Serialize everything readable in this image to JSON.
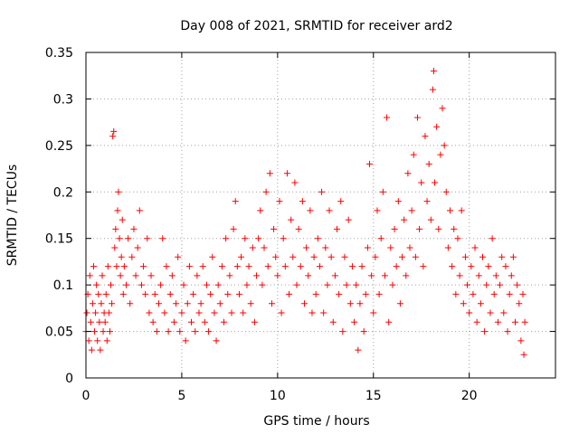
{
  "chart_data": {
    "type": "scatter",
    "title": "Day 008 of 2021, SRMTID for receiver ard2",
    "xlabel": "GPS time / hours",
    "ylabel": "SRMTID / TECUs",
    "xlim": [
      0,
      24.5
    ],
    "ylim": [
      0,
      0.35
    ],
    "grid": true,
    "marker": "+",
    "color": "#ff0000",
    "x_ticks": [
      0,
      5,
      10,
      15,
      20
    ],
    "x_tick_labels": [
      "0",
      "5",
      "10",
      "15",
      "20"
    ],
    "y_ticks": [
      0,
      0.05,
      0.1,
      0.15,
      0.2,
      0.25,
      0.3,
      0.35
    ],
    "y_tick_labels": [
      "0",
      "0.05",
      "0.1",
      "0.15",
      "0.2",
      "0.25",
      "0.3",
      "0.35"
    ],
    "series": [
      {
        "name": "SRMTID",
        "points": [
          [
            0.0,
            0.05
          ],
          [
            0.05,
            0.07
          ],
          [
            0.1,
            0.09
          ],
          [
            0.15,
            0.04
          ],
          [
            0.2,
            0.11
          ],
          [
            0.25,
            0.06
          ],
          [
            0.3,
            0.03
          ],
          [
            0.35,
            0.08
          ],
          [
            0.4,
            0.12
          ],
          [
            0.45,
            0.05
          ],
          [
            0.5,
            0.07
          ],
          [
            0.55,
            0.1
          ],
          [
            0.6,
            0.04
          ],
          [
            0.65,
            0.09
          ],
          [
            0.7,
            0.06
          ],
          [
            0.75,
            0.03
          ],
          [
            0.8,
            0.08
          ],
          [
            0.85,
            0.11
          ],
          [
            0.9,
            0.05
          ],
          [
            0.95,
            0.07
          ],
          [
            1.0,
            0.06
          ],
          [
            1.05,
            0.09
          ],
          [
            1.1,
            0.04
          ],
          [
            1.15,
            0.12
          ],
          [
            1.2,
            0.07
          ],
          [
            1.25,
            0.05
          ],
          [
            1.3,
            0.1
          ],
          [
            1.35,
            0.08
          ],
          [
            1.4,
            0.26
          ],
          [
            1.45,
            0.265
          ],
          [
            1.5,
            0.14
          ],
          [
            1.55,
            0.16
          ],
          [
            1.6,
            0.12
          ],
          [
            1.65,
            0.18
          ],
          [
            1.7,
            0.2
          ],
          [
            1.75,
            0.15
          ],
          [
            1.8,
            0.11
          ],
          [
            1.85,
            0.13
          ],
          [
            1.9,
            0.17
          ],
          [
            1.95,
            0.09
          ],
          [
            2.0,
            0.12
          ],
          [
            2.1,
            0.1
          ],
          [
            2.2,
            0.15
          ],
          [
            2.3,
            0.08
          ],
          [
            2.4,
            0.13
          ],
          [
            2.5,
            0.16
          ],
          [
            2.6,
            0.11
          ],
          [
            2.7,
            0.14
          ],
          [
            2.8,
            0.18
          ],
          [
            2.9,
            0.1
          ],
          [
            3.0,
            0.12
          ],
          [
            3.1,
            0.09
          ],
          [
            3.2,
            0.15
          ],
          [
            3.3,
            0.07
          ],
          [
            3.4,
            0.11
          ],
          [
            3.5,
            0.06
          ],
          [
            3.6,
            0.09
          ],
          [
            3.7,
            0.05
          ],
          [
            3.8,
            0.08
          ],
          [
            3.9,
            0.1
          ],
          [
            4.0,
            0.15
          ],
          [
            4.1,
            0.07
          ],
          [
            4.2,
            0.12
          ],
          [
            4.3,
            0.05
          ],
          [
            4.4,
            0.09
          ],
          [
            4.5,
            0.11
          ],
          [
            4.6,
            0.06
          ],
          [
            4.7,
            0.08
          ],
          [
            4.8,
            0.13
          ],
          [
            4.9,
            0.05
          ],
          [
            5.0,
            0.07
          ],
          [
            5.1,
            0.1
          ],
          [
            5.2,
            0.04
          ],
          [
            5.3,
            0.08
          ],
          [
            5.4,
            0.12
          ],
          [
            5.5,
            0.06
          ],
          [
            5.6,
            0.09
          ],
          [
            5.7,
            0.05
          ],
          [
            5.8,
            0.11
          ],
          [
            5.9,
            0.07
          ],
          [
            6.0,
            0.08
          ],
          [
            6.1,
            0.12
          ],
          [
            6.2,
            0.06
          ],
          [
            6.3,
            0.1
          ],
          [
            6.4,
            0.05
          ],
          [
            6.5,
            0.09
          ],
          [
            6.6,
            0.13
          ],
          [
            6.7,
            0.07
          ],
          [
            6.8,
            0.04
          ],
          [
            6.9,
            0.1
          ],
          [
            7.0,
            0.08
          ],
          [
            7.1,
            0.12
          ],
          [
            7.2,
            0.06
          ],
          [
            7.3,
            0.15
          ],
          [
            7.4,
            0.09
          ],
          [
            7.5,
            0.11
          ],
          [
            7.6,
            0.07
          ],
          [
            7.7,
            0.16
          ],
          [
            7.8,
            0.19
          ],
          [
            7.9,
            0.12
          ],
          [
            8.0,
            0.09
          ],
          [
            8.1,
            0.13
          ],
          [
            8.2,
            0.07
          ],
          [
            8.3,
            0.15
          ],
          [
            8.4,
            0.1
          ],
          [
            8.5,
            0.12
          ],
          [
            8.6,
            0.08
          ],
          [
            8.7,
            0.14
          ],
          [
            8.8,
            0.06
          ],
          [
            8.9,
            0.11
          ],
          [
            9.0,
            0.15
          ],
          [
            9.1,
            0.18
          ],
          [
            9.2,
            0.1
          ],
          [
            9.3,
            0.14
          ],
          [
            9.4,
            0.2
          ],
          [
            9.5,
            0.12
          ],
          [
            9.6,
            0.22
          ],
          [
            9.7,
            0.08
          ],
          [
            9.8,
            0.16
          ],
          [
            9.9,
            0.13
          ],
          [
            10.0,
            0.11
          ],
          [
            10.1,
            0.19
          ],
          [
            10.2,
            0.07
          ],
          [
            10.3,
            0.15
          ],
          [
            10.4,
            0.12
          ],
          [
            10.5,
            0.22
          ],
          [
            10.6,
            0.09
          ],
          [
            10.7,
            0.17
          ],
          [
            10.8,
            0.13
          ],
          [
            10.9,
            0.21
          ],
          [
            11.0,
            0.1
          ],
          [
            11.1,
            0.16
          ],
          [
            11.2,
            0.12
          ],
          [
            11.3,
            0.19
          ],
          [
            11.4,
            0.08
          ],
          [
            11.5,
            0.14
          ],
          [
            11.6,
            0.11
          ],
          [
            11.7,
            0.18
          ],
          [
            11.8,
            0.07
          ],
          [
            11.9,
            0.13
          ],
          [
            12.0,
            0.09
          ],
          [
            12.1,
            0.15
          ],
          [
            12.2,
            0.12
          ],
          [
            12.3,
            0.2
          ],
          [
            12.4,
            0.07
          ],
          [
            12.5,
            0.14
          ],
          [
            12.6,
            0.1
          ],
          [
            12.7,
            0.18
          ],
          [
            12.8,
            0.13
          ],
          [
            12.9,
            0.06
          ],
          [
            13.0,
            0.11
          ],
          [
            13.1,
            0.16
          ],
          [
            13.2,
            0.09
          ],
          [
            13.3,
            0.19
          ],
          [
            13.4,
            0.05
          ],
          [
            13.5,
            0.13
          ],
          [
            13.6,
            0.1
          ],
          [
            13.7,
            0.17
          ],
          [
            13.8,
            0.08
          ],
          [
            13.9,
            0.12
          ],
          [
            14.0,
            0.06
          ],
          [
            14.1,
            0.1
          ],
          [
            14.2,
            0.03
          ],
          [
            14.3,
            0.08
          ],
          [
            14.4,
            0.12
          ],
          [
            14.5,
            0.05
          ],
          [
            14.6,
            0.09
          ],
          [
            14.7,
            0.14
          ],
          [
            14.8,
            0.23
          ],
          [
            14.9,
            0.11
          ],
          [
            15.0,
            0.07
          ],
          [
            15.1,
            0.13
          ],
          [
            15.2,
            0.18
          ],
          [
            15.3,
            0.09
          ],
          [
            15.4,
            0.15
          ],
          [
            15.5,
            0.2
          ],
          [
            15.6,
            0.11
          ],
          [
            15.7,
            0.28
          ],
          [
            15.8,
            0.06
          ],
          [
            15.9,
            0.14
          ],
          [
            16.0,
            0.1
          ],
          [
            16.1,
            0.16
          ],
          [
            16.2,
            0.12
          ],
          [
            16.3,
            0.19
          ],
          [
            16.4,
            0.08
          ],
          [
            16.5,
            0.13
          ],
          [
            16.6,
            0.17
          ],
          [
            16.7,
            0.11
          ],
          [
            16.8,
            0.22
          ],
          [
            16.9,
            0.14
          ],
          [
            17.0,
            0.18
          ],
          [
            17.1,
            0.24
          ],
          [
            17.2,
            0.13
          ],
          [
            17.3,
            0.28
          ],
          [
            17.4,
            0.16
          ],
          [
            17.5,
            0.21
          ],
          [
            17.6,
            0.12
          ],
          [
            17.7,
            0.26
          ],
          [
            17.8,
            0.19
          ],
          [
            17.9,
            0.23
          ],
          [
            18.0,
            0.17
          ],
          [
            18.1,
            0.31
          ],
          [
            18.15,
            0.33
          ],
          [
            18.2,
            0.21
          ],
          [
            18.3,
            0.27
          ],
          [
            18.4,
            0.16
          ],
          [
            18.5,
            0.24
          ],
          [
            18.6,
            0.29
          ],
          [
            18.7,
            0.25
          ],
          [
            18.8,
            0.2
          ],
          [
            18.9,
            0.14
          ],
          [
            19.0,
            0.18
          ],
          [
            19.1,
            0.12
          ],
          [
            19.2,
            0.16
          ],
          [
            19.3,
            0.09
          ],
          [
            19.4,
            0.15
          ],
          [
            19.5,
            0.11
          ],
          [
            19.6,
            0.18
          ],
          [
            19.7,
            0.08
          ],
          [
            19.8,
            0.13
          ],
          [
            19.9,
            0.1
          ],
          [
            20.0,
            0.07
          ],
          [
            20.1,
            0.12
          ],
          [
            20.2,
            0.09
          ],
          [
            20.3,
            0.14
          ],
          [
            20.4,
            0.06
          ],
          [
            20.5,
            0.11
          ],
          [
            20.6,
            0.08
          ],
          [
            20.7,
            0.13
          ],
          [
            20.8,
            0.05
          ],
          [
            20.9,
            0.1
          ],
          [
            21.0,
            0.12
          ],
          [
            21.1,
            0.07
          ],
          [
            21.2,
            0.15
          ],
          [
            21.3,
            0.09
          ],
          [
            21.4,
            0.11
          ],
          [
            21.5,
            0.06
          ],
          [
            21.6,
            0.1
          ],
          [
            21.7,
            0.13
          ],
          [
            21.8,
            0.07
          ],
          [
            21.9,
            0.12
          ],
          [
            22.0,
            0.05
          ],
          [
            22.1,
            0.09
          ],
          [
            22.2,
            0.11
          ],
          [
            22.3,
            0.13
          ],
          [
            22.4,
            0.06
          ],
          [
            22.5,
            0.1
          ],
          [
            22.6,
            0.08
          ],
          [
            22.7,
            0.04
          ],
          [
            22.8,
            0.09
          ],
          [
            22.85,
            0.025
          ],
          [
            22.9,
            0.06
          ]
        ]
      }
    ]
  }
}
